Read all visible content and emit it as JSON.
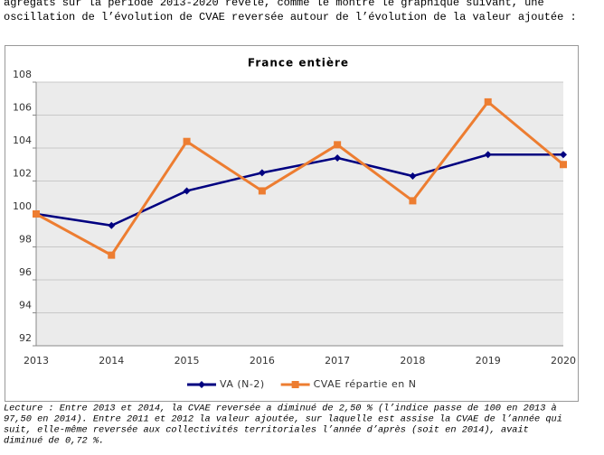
{
  "intro_lines": [
    "agrégats sur la période 2013-2020 révèle, comme le montre le graphique suivant, une",
    "oscillation de l’évolution de CVAE reversée autour de l’évolution de la valeur ajoutée :"
  ],
  "chart_data": {
    "type": "line",
    "title": "France entière",
    "categories": [
      "2013",
      "2014",
      "2015",
      "2016",
      "2017",
      "2018",
      "2019",
      "2020"
    ],
    "series": [
      {
        "name": "VA (N-2)",
        "color": "#000080",
        "marker": "diamond",
        "values": [
          100,
          99.3,
          101.4,
          102.5,
          103.4,
          102.3,
          103.6,
          103.6
        ]
      },
      {
        "name": "CVAE répartie en N",
        "color": "#ed7d31",
        "marker": "square",
        "values": [
          100,
          97.5,
          104.4,
          101.4,
          104.2,
          100.8,
          106.8,
          103.0
        ]
      }
    ],
    "ylim": [
      92,
      108
    ],
    "yticks": [
      92,
      94,
      96,
      98,
      100,
      102,
      104,
      106,
      108
    ],
    "grid": true,
    "legend": "bottom"
  },
  "caption_lines": [
    "Lecture : Entre 2013 et 2014, la CVAE reversée a diminué de 2,50 % (l’indice passe de 100 en 2013 à",
    "97,50 en 2014). Entre 2011 et 2012 la valeur ajoutée, sur laquelle est assise la CVAE de l’année qui",
    "suit, elle-même reversée aux collectivités territoriales l’année d’après (soit en 2014), avait",
    "diminué de 0,72 %."
  ]
}
